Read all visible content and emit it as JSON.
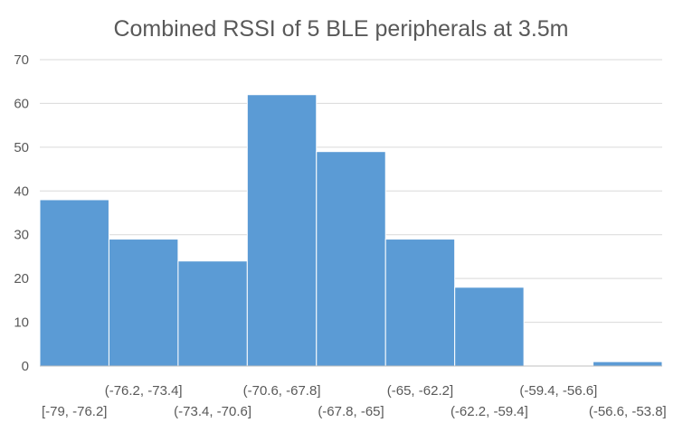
{
  "chart_data": {
    "type": "bar",
    "title": "Combined RSSI of 5 BLE peripherals at 3.5m",
    "xlabel": "",
    "ylabel": "",
    "categories": [
      "[-79, -76.2]",
      "(-76.2, -73.4]",
      "(-73.4, -70.6]",
      "(-70.6, -67.8]",
      "(-67.8, -65]",
      "(-65, -62.2]",
      "(-62.2, -59.4]",
      "(-59.4, -56.6]",
      "(-56.6, -53.8]"
    ],
    "values": [
      38,
      29,
      24,
      62,
      49,
      29,
      18,
      0,
      1
    ],
    "ylim": [
      0,
      70
    ],
    "yticks": [
      0,
      10,
      20,
      30,
      40,
      50,
      60,
      70
    ],
    "grid": true,
    "legend": "none",
    "bar_color": "#5b9bd5",
    "gridline_color": "#d9d9d9",
    "text_color": "#595959"
  }
}
